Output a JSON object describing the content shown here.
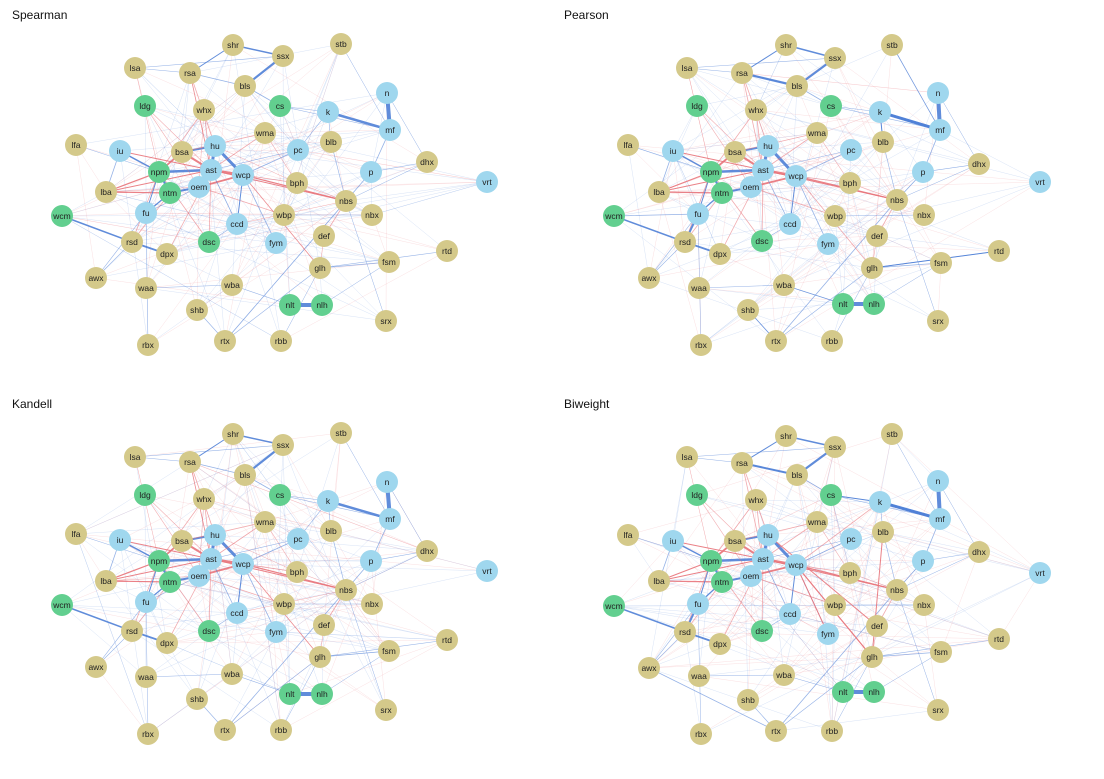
{
  "colors": {
    "group_a": "#d4c98a",
    "group_b": "#62cf8f",
    "group_c": "#9fd7ee",
    "positive_edge": "#e8737a",
    "negative_edge": "#4f7fd6",
    "background": "#ffffff"
  },
  "panels": [
    {
      "title": "Spearman"
    },
    {
      "title": "Pearson"
    },
    {
      "title": "Kandell"
    },
    {
      "title": "Biweight"
    }
  ],
  "nodes": [
    {
      "id": "shr",
      "group": "a"
    },
    {
      "id": "stb",
      "group": "a"
    },
    {
      "id": "ssx",
      "group": "a"
    },
    {
      "id": "lsa",
      "group": "a"
    },
    {
      "id": "rsa",
      "group": "a"
    },
    {
      "id": "bls",
      "group": "a"
    },
    {
      "id": "n",
      "group": "c"
    },
    {
      "id": "ldg",
      "group": "b"
    },
    {
      "id": "whx",
      "group": "a"
    },
    {
      "id": "cs",
      "group": "b"
    },
    {
      "id": "k",
      "group": "c"
    },
    {
      "id": "mf",
      "group": "c"
    },
    {
      "id": "lfa",
      "group": "a"
    },
    {
      "id": "wma",
      "group": "a"
    },
    {
      "id": "blb",
      "group": "a"
    },
    {
      "id": "iu",
      "group": "c"
    },
    {
      "id": "bsa",
      "group": "a"
    },
    {
      "id": "hu",
      "group": "c"
    },
    {
      "id": "pc",
      "group": "c"
    },
    {
      "id": "dhx",
      "group": "a"
    },
    {
      "id": "npm",
      "group": "b"
    },
    {
      "id": "ast",
      "group": "c"
    },
    {
      "id": "p",
      "group": "c"
    },
    {
      "id": "vrt",
      "group": "c"
    },
    {
      "id": "wcp",
      "group": "c"
    },
    {
      "id": "lba",
      "group": "a"
    },
    {
      "id": "oem",
      "group": "c"
    },
    {
      "id": "ntm",
      "group": "b"
    },
    {
      "id": "bph",
      "group": "a"
    },
    {
      "id": "nbs",
      "group": "a"
    },
    {
      "id": "wcm",
      "group": "b"
    },
    {
      "id": "fu",
      "group": "c"
    },
    {
      "id": "wbp",
      "group": "a"
    },
    {
      "id": "nbx",
      "group": "a"
    },
    {
      "id": "ccd",
      "group": "c"
    },
    {
      "id": "rsd",
      "group": "a"
    },
    {
      "id": "dsc",
      "group": "b"
    },
    {
      "id": "fym",
      "group": "c"
    },
    {
      "id": "def",
      "group": "a"
    },
    {
      "id": "rtd",
      "group": "a"
    },
    {
      "id": "awx",
      "group": "a"
    },
    {
      "id": "dpx",
      "group": "a"
    },
    {
      "id": "fsm",
      "group": "a"
    },
    {
      "id": "glh",
      "group": "a"
    },
    {
      "id": "waa",
      "group": "a"
    },
    {
      "id": "wba",
      "group": "a"
    },
    {
      "id": "nlt",
      "group": "b"
    },
    {
      "id": "nlh",
      "group": "b"
    },
    {
      "id": "shb",
      "group": "a"
    },
    {
      "id": "srx",
      "group": "a"
    },
    {
      "id": "rbx",
      "group": "a"
    },
    {
      "id": "rtx",
      "group": "a"
    },
    {
      "id": "rbb",
      "group": "a"
    }
  ]
}
